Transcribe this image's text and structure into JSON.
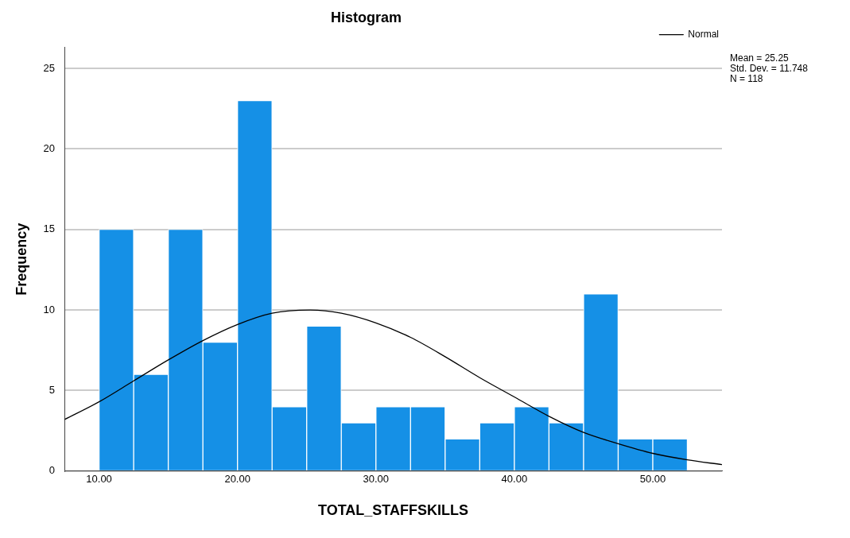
{
  "chart_data": {
    "type": "histogram",
    "title": "Histogram",
    "xlabel": "TOTAL_STAFFSKILLS",
    "ylabel": "Frequency",
    "bins": [
      10,
      12.5,
      15,
      17.5,
      20,
      22.5,
      25,
      27.5,
      30,
      32.5,
      35,
      37.5,
      40,
      42.5,
      45,
      47.5,
      50,
      52.5
    ],
    "values": [
      15,
      6,
      15,
      8,
      23,
      4,
      9,
      3,
      4,
      4,
      2,
      3,
      4,
      3,
      11,
      2,
      2
    ],
    "color": "#1590e6",
    "series": [
      {
        "type": "line",
        "name": "Normal",
        "color": "#000000",
        "x": [
          7.5,
          10,
          12.5,
          15,
          17.5,
          20,
          22.5,
          25.25,
          27.5,
          30,
          32.5,
          35,
          37.5,
          40,
          42.5,
          45,
          47.5,
          50,
          52.5,
          55
        ],
        "values": [
          3.2,
          4.3,
          5.6,
          6.9,
          8.1,
          9.1,
          9.8,
          10,
          9.8,
          9.2,
          8.3,
          7.1,
          5.8,
          4.6,
          3.4,
          2.4,
          1.7,
          1.1,
          0.7,
          0.4
        ]
      }
    ],
    "xlim": [
      7.5,
      55
    ],
    "xticks": [
      {
        "value": 10,
        "label": "10.00"
      },
      {
        "value": 20,
        "label": "20.00"
      },
      {
        "value": 30,
        "label": "30.00"
      },
      {
        "value": 40,
        "label": "40.00"
      },
      {
        "value": 50,
        "label": "50.00"
      }
    ],
    "ylim": [
      0,
      26.3
    ],
    "yticks": [
      0,
      5,
      10,
      15,
      20,
      25
    ],
    "grid": "y",
    "legend": "top right",
    "annotations": [
      "Mean = 25.25",
      "Std. Dev. = 11.748",
      "N = 118"
    ]
  }
}
